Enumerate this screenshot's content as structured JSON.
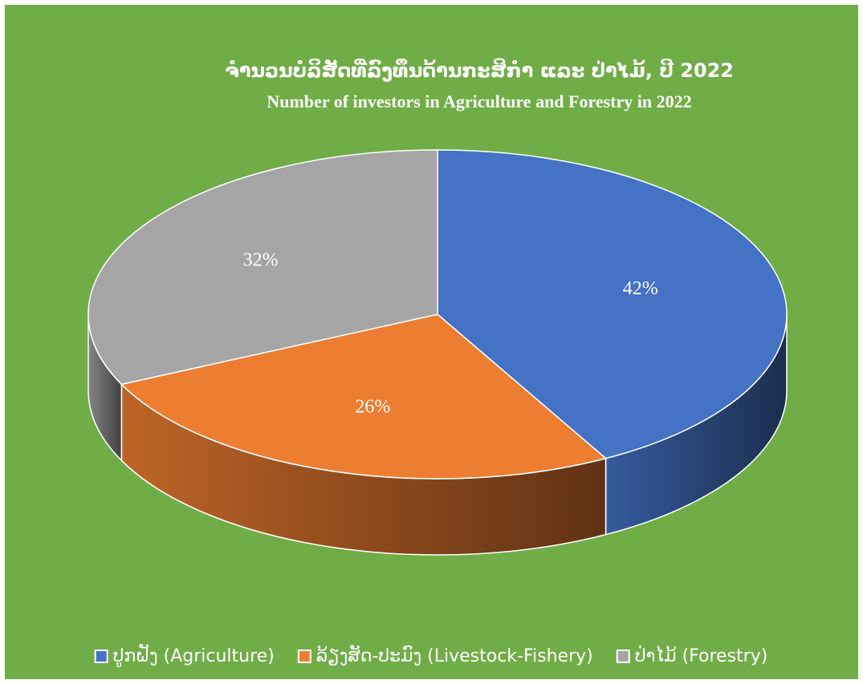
{
  "chart_data": {
    "type": "pie",
    "title": "ຈຳນວນບໍລິສັດທີ່ລົງທຶນດ້ານກະສິກຳ ແລະ ປ່າໄມ້, ປີ 2022",
    "subtitle": "Number of investors in Agriculture and Forestry in 2022",
    "categories": [
      "ປູກຝັງ (Agriculture)",
      "ລ້ຽງສັດ-ປະມົງ (Livestock-Fishery)",
      "ປ່າໄມ້ (Forestry)"
    ],
    "values": [
      42,
      26,
      32
    ],
    "value_labels": [
      "42%",
      "26%",
      "32%"
    ],
    "colors": [
      "#4472c4",
      "#ed7d31",
      "#a5a5a5"
    ],
    "legend": "bottom"
  }
}
